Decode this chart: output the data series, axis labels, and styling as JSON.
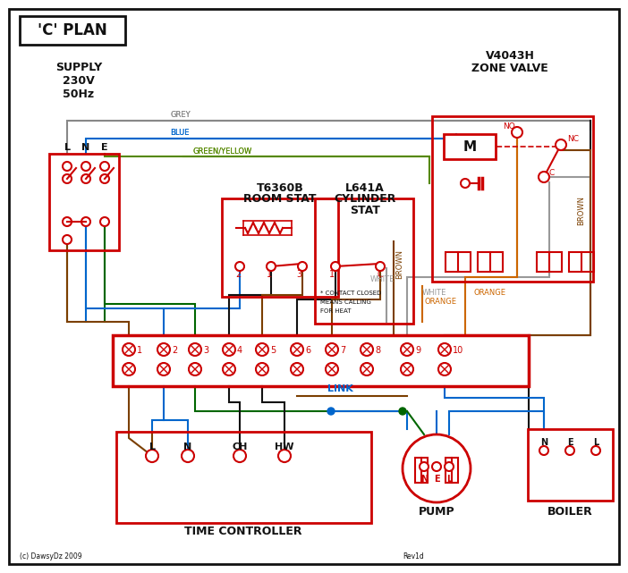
{
  "bg_color": "#ffffff",
  "red": "#cc0000",
  "blue": "#0066cc",
  "green": "#006600",
  "brown": "#7B3F00",
  "grey": "#888888",
  "orange": "#cc6600",
  "black": "#111111",
  "gy": "#558800",
  "white_w": "#999999",
  "title": "'C' PLAN",
  "zone_valve_title1": "V4043H",
  "zone_valve_title2": "ZONE VALVE",
  "room_stat1": "T6360B",
  "room_stat2": "ROOM STAT",
  "cyl_stat1": "L641A",
  "cyl_stat2": "CYLINDER",
  "cyl_stat3": "STAT",
  "supply_text": "SUPPLY\n230V\n50Hz",
  "time_ctrl_text": "TIME CONTROLLER",
  "pump_text": "PUMP",
  "boiler_text": "BOILER",
  "link_text": "LINK",
  "copyright": "(c) DawsyDz 2009",
  "rev": "Rev1d"
}
